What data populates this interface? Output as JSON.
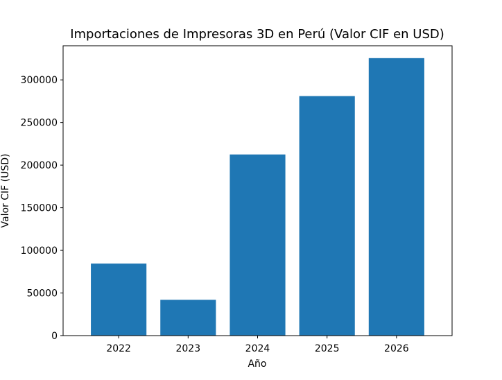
{
  "chart_data": {
    "type": "bar",
    "title": "Importaciones de Impresoras 3D en Perú (Valor CIF en USD)",
    "xlabel": "Año",
    "ylabel": "Valor CIF (USD)",
    "categories": [
      "2022",
      "2023",
      "2024",
      "2025",
      "2026"
    ],
    "values": [
      84500,
      42000,
      212500,
      281000,
      325500
    ],
    "ylim": [
      0,
      340000
    ],
    "yticks": [
      0,
      50000,
      100000,
      150000,
      200000,
      250000,
      300000
    ],
    "ytick_labels": [
      "0",
      "50000",
      "100000",
      "150000",
      "200000",
      "250000",
      "300000"
    ],
    "grid": false,
    "legend": "none",
    "colors": {
      "bar": "#1f77b4",
      "axes": "#000000",
      "background": "#ffffff"
    }
  }
}
